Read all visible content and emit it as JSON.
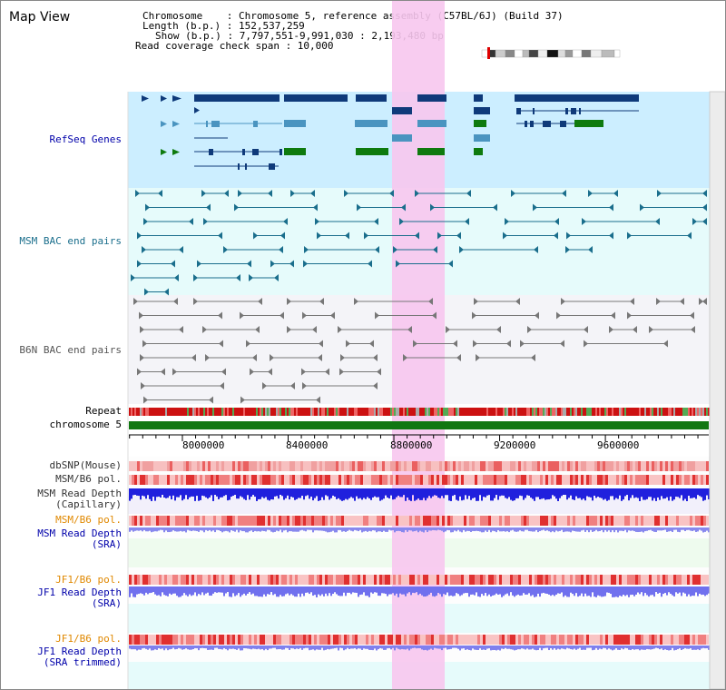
{
  "page": {
    "title": "Map View"
  },
  "info": {
    "chromosome_line": "Chromosome    : Chromosome 5, reference assembly (C57BL/6J) (Build 37)",
    "length_line": "Length (b.p.) : 152,537,259",
    "show_line": "Show (b.p.) : 7,797,551-9,991,030 : 2,193,480 bp",
    "coverage_line": "Read coverage check span : 10,000"
  },
  "tracks": {
    "refseq": "RefSeq Genes",
    "msm_bac": "MSM BAC end pairs",
    "b6n_bac": "B6N BAC end pairs",
    "repeat": "Repeat",
    "chromosome": "chromosome 5",
    "dbsnp": "dbSNP(Mouse)",
    "msm_b6_pol_1": "MSM/B6 pol.",
    "msm_read_depth_cap_1": "MSM Read Depth",
    "msm_read_depth_cap_2": "(Capillary)",
    "msm_b6_pol_2": "MSM/B6 pol.",
    "msm_read_depth_sra_1": "MSM Read Depth",
    "msm_read_depth_sra_2": "(SRA)",
    "jf1_b6_pol_1": "JF1/B6 pol.",
    "jf1_read_depth_sra_1": "JF1 Read Depth",
    "jf1_read_depth_sra_2": "(SRA)",
    "jf1_b6_pol_2": "JF1/B6 pol.",
    "jf1_read_depth_trim_1": "JF1 Read Depth",
    "jf1_read_depth_trim_2": "(SRA trimmed)"
  },
  "axis": {
    "ticks": [
      "8000000",
      "8400000",
      "8800000",
      "9200000",
      "9600000"
    ],
    "tick_values": [
      8000000,
      8400000,
      8800000,
      9200000,
      9600000
    ],
    "range": [
      7797551,
      9991030
    ]
  },
  "colors": {
    "refseq_bg": "#cceeff",
    "msm_bac_bg": "#e6fbfb",
    "b6n_bg": "#f4f4f8",
    "highlight": "#f7c6ee",
    "gene_dark": "#0f3a7a",
    "gene_mid": "#4a94c0",
    "gene_green": "#0e7a0e",
    "msm_bac": "#1a6e8c",
    "b6n_bac": "#777777",
    "chromosome": "#117711",
    "label_blue": "#0000aa",
    "label_orange": "#e08800"
  }
}
